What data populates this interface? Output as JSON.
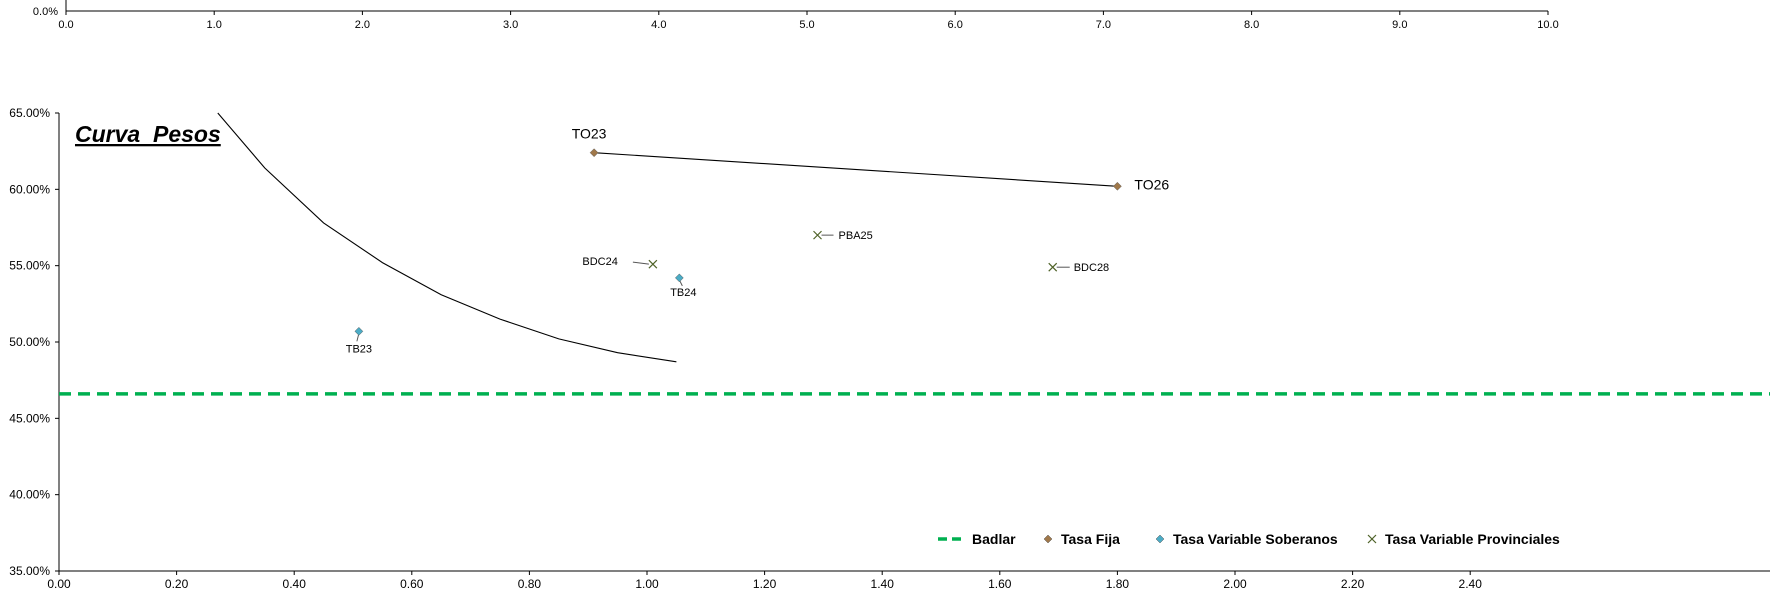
{
  "chart_data": [
    {
      "type": "line",
      "title": "",
      "xlim": [
        0,
        10
      ],
      "y_tick_label": "0.0%",
      "x_ticks": [
        "0.0",
        "1.0",
        "2.0",
        "3.0",
        "4.0",
        "5.0",
        "6.0",
        "7.0",
        "8.0",
        "9.0",
        "10.0"
      ],
      "x_tick_values": [
        0,
        1,
        2,
        3,
        4,
        5,
        6,
        7,
        8,
        9,
        10
      ]
    },
    {
      "type": "scatter",
      "title": "Curva  Pesos",
      "xlim": [
        0,
        2.5
      ],
      "ylim": [
        0.35,
        0.65
      ],
      "x_ticks": [
        "0.00",
        "0.20",
        "0.40",
        "0.60",
        "0.80",
        "1.00",
        "1.20",
        "1.40",
        "1.60",
        "1.80",
        "2.00",
        "2.20",
        "2.40"
      ],
      "x_tick_values": [
        0,
        0.2,
        0.4,
        0.6,
        0.8,
        1.0,
        1.2,
        1.4,
        1.6,
        1.8,
        2.0,
        2.2,
        2.4
      ],
      "y_ticks": [
        "35.00%",
        "40.00%",
        "45.00%",
        "50.00%",
        "55.00%",
        "60.00%",
        "65.00%"
      ],
      "y_tick_values": [
        0.35,
        0.4,
        0.45,
        0.5,
        0.55,
        0.6,
        0.65
      ],
      "legend_position": "bottom-right",
      "series": [
        {
          "name": "Badlar",
          "kind": "hline",
          "y": 0.466,
          "color": "#00b050"
        },
        {
          "name": "Tasa Fija",
          "kind": "scatter",
          "marker": "diamond",
          "color": "#a0784a",
          "points": [
            {
              "label": "TO23",
              "x": 0.91,
              "y": 0.624
            },
            {
              "label": "TO26",
              "x": 1.8,
              "y": 0.602
            }
          ]
        },
        {
          "name": "Tasa Variable Soberanos",
          "kind": "scatter",
          "marker": "diamond",
          "color": "#4bacc6",
          "points": [
            {
              "label": "TB23",
              "x": 0.51,
              "y": 0.507
            },
            {
              "label": "TB24",
              "x": 1.055,
              "y": 0.542
            }
          ]
        },
        {
          "name": "Tasa Variable Provinciales",
          "kind": "scatter",
          "marker": "x",
          "color": "#4f6228",
          "points": [
            {
              "label": "BDC24",
              "x": 1.01,
              "y": 0.551
            },
            {
              "label": "PBA25",
              "x": 1.29,
              "y": 0.57
            },
            {
              "label": "BDC28",
              "x": 1.69,
              "y": 0.549
            }
          ]
        }
      ],
      "trend_curve": [
        {
          "x": 0.27,
          "y": 0.65
        },
        {
          "x": 0.35,
          "y": 0.614
        },
        {
          "x": 0.45,
          "y": 0.578
        },
        {
          "x": 0.55,
          "y": 0.552
        },
        {
          "x": 0.65,
          "y": 0.531
        },
        {
          "x": 0.75,
          "y": 0.515
        },
        {
          "x": 0.85,
          "y": 0.502
        },
        {
          "x": 0.95,
          "y": 0.493
        },
        {
          "x": 1.05,
          "y": 0.487
        }
      ],
      "fixed_rate_line": [
        {
          "x": 0.91,
          "y": 0.624
        },
        {
          "x": 1.8,
          "y": 0.602
        }
      ]
    }
  ]
}
